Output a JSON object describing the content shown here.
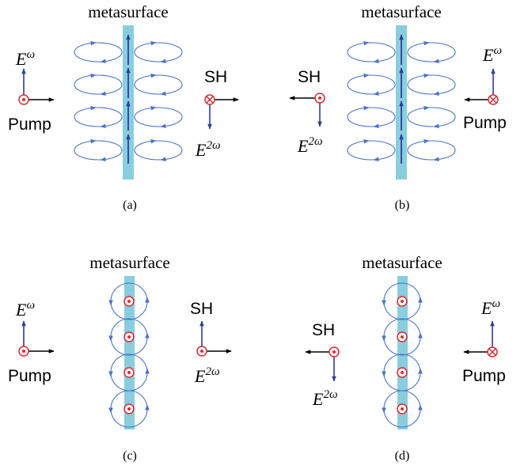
{
  "colors": {
    "slab": "#88cede",
    "loop": "#4a72c8",
    "arrow_blue": "#2a3f9a",
    "pump_red": "#e0282e",
    "black": "#000000"
  },
  "panels": [
    {
      "id": "a",
      "title": "metasurface",
      "caption": "(a)",
      "pump_label": "Pump",
      "field_in": {
        "base": "E",
        "sup": "ω",
        "symbol": "dot-circle"
      },
      "sh_label": "SH",
      "field_out": {
        "base": "E",
        "sup": "2ω",
        "symbol": "cross-circle"
      }
    },
    {
      "id": "b",
      "title": "metasurface",
      "caption": "(b)",
      "pump_label": "Pump",
      "field_in": {
        "base": "E",
        "sup": "ω",
        "symbol": "cross-circle"
      },
      "sh_label": "SH",
      "field_out": {
        "base": "E",
        "sup": "2ω",
        "symbol": "dot-circle"
      }
    },
    {
      "id": "c",
      "title": "metasurface",
      "caption": "(c)",
      "pump_label": "Pump",
      "field_in": {
        "base": "E",
        "sup": "ω",
        "symbol": "dot-circle"
      },
      "sh_label": "SH",
      "field_out": {
        "base": "E",
        "sup": "2ω",
        "symbol": "dot-circle"
      }
    },
    {
      "id": "d",
      "title": "metasurface",
      "caption": "(d)",
      "pump_label": "Pump",
      "field_in": {
        "base": "E",
        "sup": "ω",
        "symbol": "cross-circle"
      },
      "sh_label": "SH",
      "field_out": {
        "base": "E",
        "sup": "2ω",
        "symbol": "dot-circle"
      }
    }
  ]
}
